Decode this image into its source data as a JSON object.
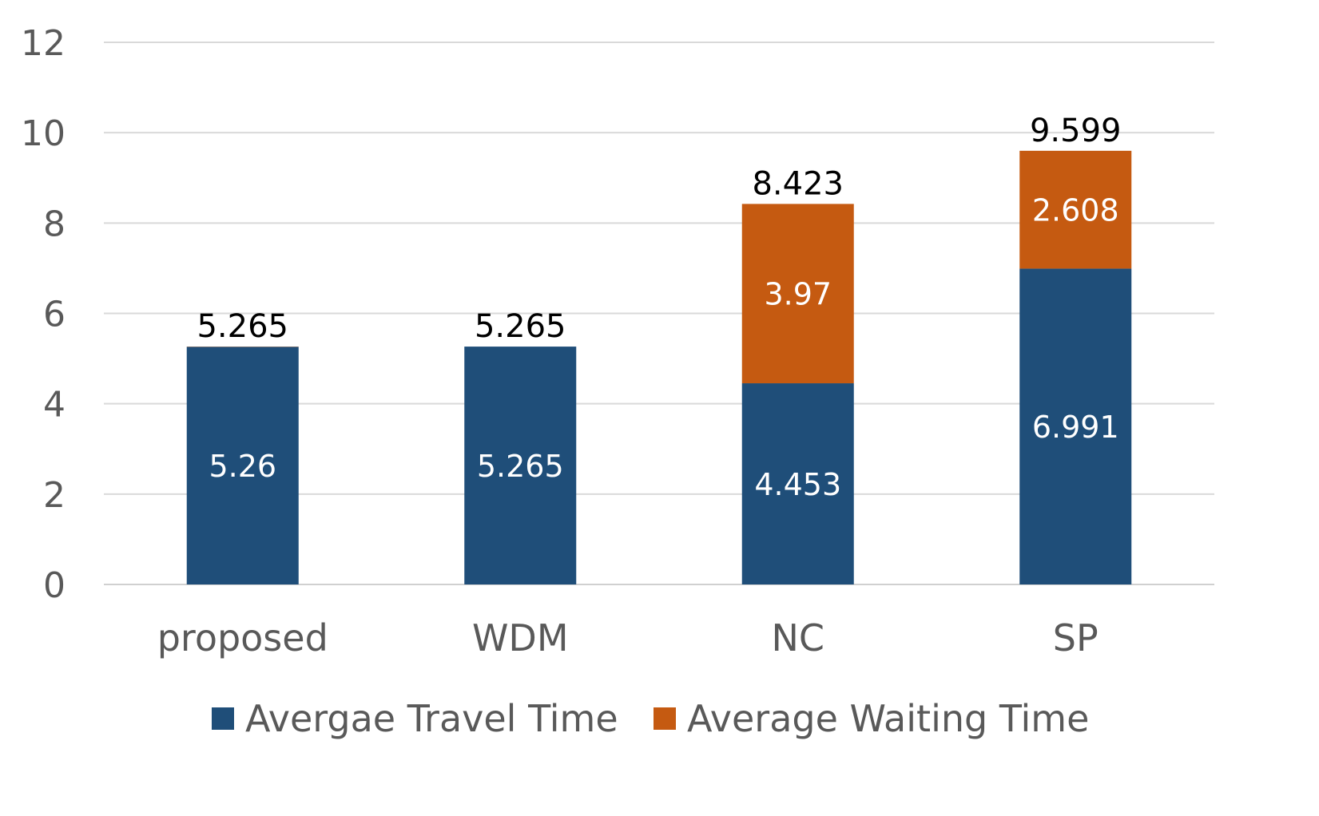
{
  "chart_data": {
    "type": "bar",
    "stacked": true,
    "categories": [
      "proposed",
      "WDM",
      "NC",
      "SP"
    ],
    "series": [
      {
        "name": "Avergae Travel Time",
        "color": "#1f4e79",
        "values": [
          5.26,
          5.265,
          4.453,
          6.991
        ],
        "labels": [
          "5.26",
          "5.265",
          "4.453",
          "6.991"
        ]
      },
      {
        "name": "Average Waiting Time",
        "color": "#c55a11",
        "values": [
          0.005,
          0,
          3.97,
          2.608
        ],
        "labels": [
          "",
          "",
          "3.97",
          "2.608"
        ]
      }
    ],
    "totals": [
      5.265,
      5.265,
      8.423,
      9.599
    ],
    "total_labels": [
      "5.265",
      "5.265",
      "8.423",
      "9.599"
    ],
    "yticks": [
      "0",
      "2",
      "4",
      "6",
      "8",
      "10",
      "12"
    ],
    "ylim": [
      0,
      12
    ],
    "grid": true,
    "legend_position": "bottom",
    "title": "",
    "xlabel": "",
    "ylabel": ""
  }
}
